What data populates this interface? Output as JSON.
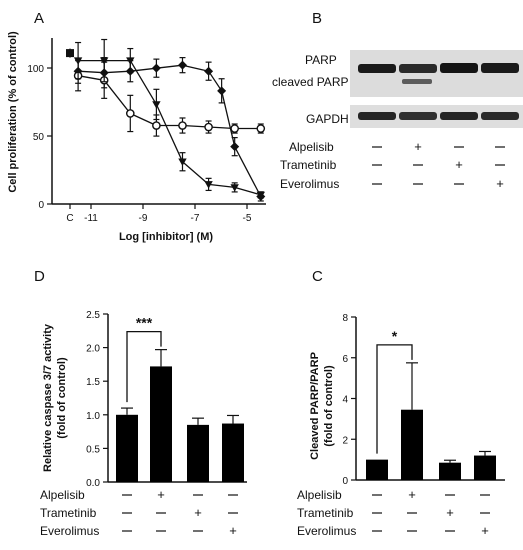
{
  "panels": {
    "A": {
      "letter": "A",
      "ylabel": "Cell proliferation (% of control)",
      "xlabel": "Log [inhibitor] (M)",
      "control_label": "C",
      "y_ticks": [
        "0",
        "50",
        "100"
      ],
      "x_ticks": [
        "-11",
        "-9",
        "-7",
        "-5"
      ]
    },
    "B": {
      "letter": "B",
      "bands": [
        "PARP",
        "cleaved PARP",
        "GAPDH"
      ],
      "signs": {
        "Alpelisib": [
          "–",
          "+",
          "–",
          "–"
        ],
        "Trametinib": [
          "–",
          "–",
          "+",
          "–"
        ],
        "Everolimus": [
          "–",
          "–",
          "–",
          "+"
        ]
      }
    },
    "C": {
      "letter": "C"
    },
    "D": {
      "letter": "D"
    }
  },
  "treatments": [
    "Alpelisib",
    "Trametinib",
    "Everolimus"
  ],
  "chart_data": [
    {
      "id": "A",
      "type": "line",
      "xlabel": "Log [inhibitor] (M)",
      "ylabel": "Cell proliferation (% of control)",
      "xlim": [
        -12,
        -3.8
      ],
      "ylim": [
        0,
        110
      ],
      "control": {
        "y": 100,
        "err": 3
      },
      "series": [
        {
          "marker": "diamond",
          "x": [
            -11,
            -10,
            -9,
            -8,
            -7,
            -6,
            -5.5,
            -5,
            -4
          ],
          "y": [
            88,
            87,
            88,
            90,
            92,
            88,
            75,
            38,
            5
          ],
          "err": [
            8,
            10,
            7,
            6,
            5,
            6,
            8,
            6,
            3
          ]
        },
        {
          "marker": "circle",
          "x": [
            -11,
            -10,
            -9,
            -8,
            -7,
            -6,
            -5,
            -4
          ],
          "y": [
            85,
            82,
            60,
            52,
            52,
            51,
            50,
            50
          ],
          "err": [
            10,
            12,
            12,
            7,
            5,
            4,
            3,
            3
          ]
        },
        {
          "marker": "triangle",
          "x": [
            -11,
            -10,
            -9,
            -8,
            -7,
            -6,
            -5,
            -4
          ],
          "y": [
            95,
            95,
            95,
            66,
            28,
            13,
            11,
            6
          ],
          "err": [
            12,
            14,
            8,
            10,
            6,
            4,
            3,
            2
          ]
        }
      ]
    },
    {
      "id": "D",
      "type": "bar",
      "ylabel": "Relative caspase 3/7 activity (fold of control)",
      "ylim": [
        0,
        2.5
      ],
      "y_ticks": [
        "0.0",
        "0.5",
        "1.0",
        "1.5",
        "2.0",
        "2.5"
      ],
      "values": [
        1.0,
        1.72,
        0.85,
        0.87
      ],
      "errors": [
        0.1,
        0.25,
        0.1,
        0.12
      ],
      "significance": "***",
      "signs": {
        "Alpelisib": [
          "–",
          "+",
          "–",
          "–"
        ],
        "Trametinib": [
          "–",
          "–",
          "+",
          "–"
        ],
        "Everolimus": [
          "–",
          "–",
          "–",
          "+"
        ]
      }
    },
    {
      "id": "C",
      "type": "bar",
      "ylabel": "Cleaved PARP/PARP (fold of control)",
      "ylim": [
        0,
        8
      ],
      "y_ticks": [
        "0",
        "2",
        "4",
        "6",
        "8"
      ],
      "values": [
        1.0,
        3.45,
        0.85,
        1.2
      ],
      "errors": [
        0,
        2.3,
        0.12,
        0.2
      ],
      "significance": "*",
      "signs": {
        "Alpelisib": [
          "–",
          "+",
          "–",
          "–"
        ],
        "Trametinib": [
          "–",
          "–",
          "+",
          "–"
        ],
        "Everolimus": [
          "–",
          "–",
          "–",
          "+"
        ]
      }
    }
  ]
}
